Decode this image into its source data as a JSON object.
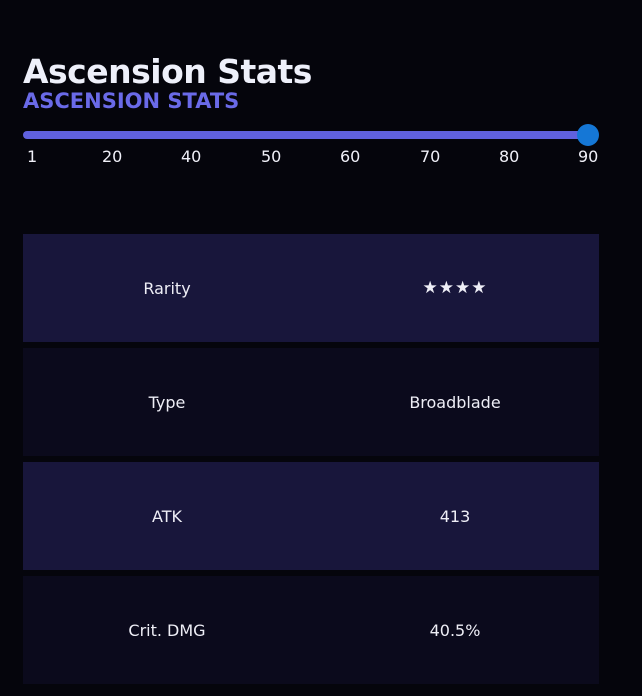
{
  "header": {
    "title": "Ascension Stats",
    "subtitle": "ASCENSION STATS"
  },
  "slider": {
    "min": 1,
    "max": 90,
    "value": 90,
    "ticks": [
      "1",
      "20",
      "40",
      "50",
      "60",
      "70",
      "80",
      "90"
    ],
    "accent_color": "#6061de",
    "thumb_color": "#1577d6"
  },
  "stats": [
    {
      "label": "Rarity",
      "value": "★★★★"
    },
    {
      "label": "Type",
      "value": "Broadblade"
    },
    {
      "label": "ATK",
      "value": "413"
    },
    {
      "label": "Crit. DMG",
      "value": "40.5%"
    }
  ]
}
